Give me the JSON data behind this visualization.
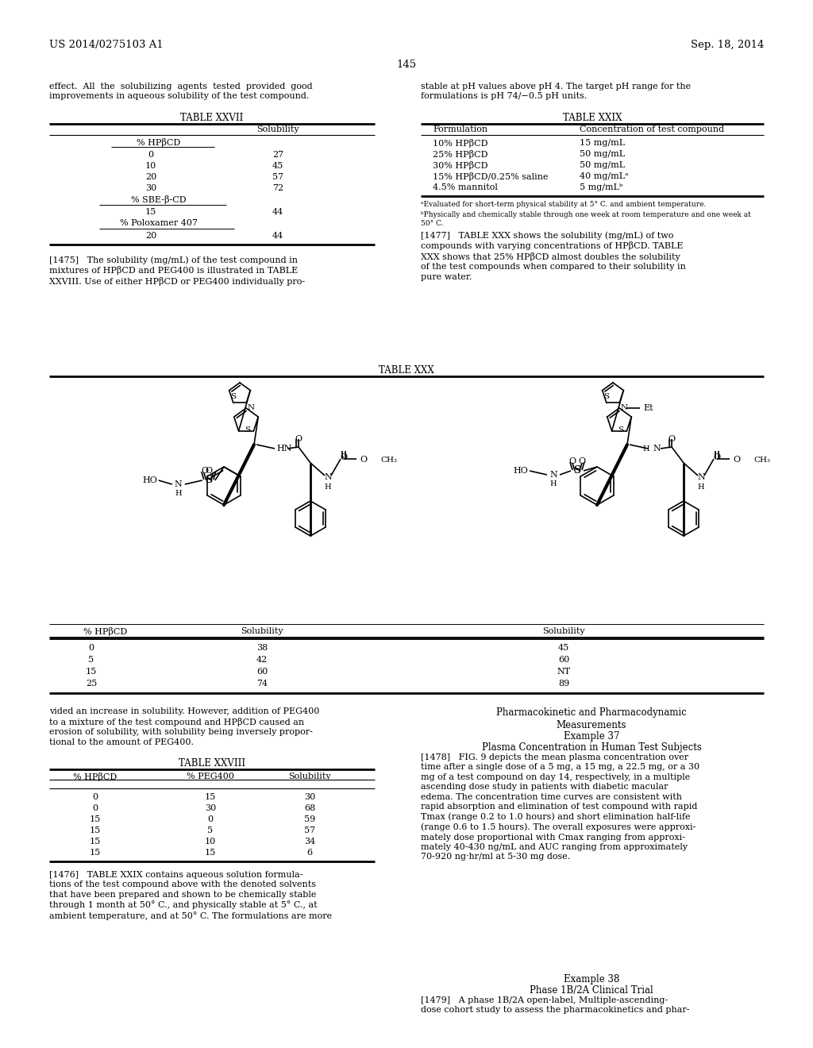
{
  "page_header_left": "US 2014/0275103 A1",
  "page_header_right": "Sep. 18, 2014",
  "page_number": "145",
  "bg_color": "#ffffff",
  "top_left_text": "effect.  All  the  solubilizing  agents  tested  provided  good\nimprovements in aqueous solubility of the test compound.",
  "top_right_text": "stable at pH values above pH 4. The target pH range for the\nformulations is pH 74/−0.5 pH units.",
  "table27_title": "TABLE XXVII",
  "table27_col2": "Solubility",
  "table27_row_header1": "% HPβCD",
  "table27_data": [
    [
      "0",
      "27"
    ],
    [
      "10",
      "45"
    ],
    [
      "20",
      "57"
    ],
    [
      "30",
      "72"
    ]
  ],
  "table27_row_header2": "% SBE-β-CD",
  "table27_data2": [
    [
      "15",
      "44"
    ]
  ],
  "table27_row_header3": "% Poloxamer 407",
  "table27_data3": [
    [
      "20",
      "44"
    ]
  ],
  "table29_title": "TABLE XXIX",
  "table29_col1": "Formulation",
  "table29_col2": "Concentration of test compound",
  "table29_data": [
    [
      "10% HPβCD",
      "15 mg/mL"
    ],
    [
      "25% HPβCD",
      "50 mg/mL"
    ],
    [
      "30% HPβCD",
      "50 mg/mL"
    ],
    [
      "15% HPβCD/0.25% saline",
      "40 mg/mLᵃ"
    ],
    [
      "4.5% mannitol",
      "5 mg/mLᵇ"
    ]
  ],
  "table29_footnote_a": "ᵃEvaluated for short-term physical stability at 5° C. and ambient temperature.",
  "table29_footnote_b": "ᵇPhysically and chemically stable through one week at room temperature and one week at\n50° C.",
  "para1477_text": "[1477]   TABLE XXX shows the solubility (mg/mL) of two\ncompounds with varying concentrations of HPβCD. TABLE\nXXX shows that 25% HPβCD almost doubles the solubility\nof the test compounds when compared to their solubility in\npure water.",
  "table30_title": "TABLE XXX",
  "table30_col1": "% HPβCD",
  "table30_col2": "Solubility",
  "table30_col3": "Solubility",
  "table30_data": [
    [
      "0",
      "38",
      "45"
    ],
    [
      "5",
      "42",
      "60"
    ],
    [
      "15",
      "60",
      "NT"
    ],
    [
      "25",
      "74",
      "89"
    ]
  ],
  "para1475_text": "[1475]   The solubility (mg/mL) of the test compound in\nmixtures of HPβCD and PEG400 is illustrated in TABLE\nXXVIII. Use of either HPβCD or PEG400 individually pro-",
  "para_bottom_left": "vided an increase in solubility. However, addition of PEG400\nto a mixture of the test compound and HPβCD caused an\nerosion of solubility, with solubility being inversely propor-\ntional to the amount of PEG400.",
  "table28_title": "TABLE XXVIII",
  "table28_col1": "% HPβCD",
  "table28_col2": "% PEG400",
  "table28_col3": "Solubility",
  "table28_data": [
    [
      "0",
      "15",
      "30"
    ],
    [
      "0",
      "30",
      "68"
    ],
    [
      "15",
      "0",
      "59"
    ],
    [
      "15",
      "5",
      "57"
    ],
    [
      "15",
      "10",
      "34"
    ],
    [
      "15",
      "15",
      "6"
    ]
  ],
  "pk_header": "Pharmacokinetic and Pharmacodynamic\nMeasurements",
  "example37_header": "Example 37",
  "plasma_header": "Plasma Concentration in Human Test Subjects",
  "para1478_text": "[1478]   FIG. 9 depicts the mean plasma concentration over\ntime after a single dose of a 5 mg, a 15 mg, a 22.5 mg, or a 30\nmg of a test compound on day 14, respectively, in a multiple\nascending dose study in patients with diabetic macular\nedema. The concentration time curves are consistent with\nrapid absorption and elimination of test compound with rapid\nTmax (range 0.2 to 1.0 hours) and short elimination half-life\n(range 0.6 to 1.5 hours). The overall exposures were approxi-\nmately dose proportional with Cmax ranging from approxi-\nmately 40-430 ng/mL and AUC ranging from approximately\n70-920 ng·hr/ml at 5-30 mg dose.",
  "para1476_text": "[1476]   TABLE XXIX contains aqueous solution formula-\ntions of the test compound above with the denoted solvents\nthat have been prepared and shown to be chemically stable\nthrough 1 month at 50° C., and physically stable at 5° C., at\nambient temperature, and at 50° C. The formulations are more",
  "example38_header": "Example 38",
  "phase_header": "Phase 1B/2A Clinical Trial",
  "para1479_text": "[1479]   A phase 1B/2A open-label, Multiple-ascending-\ndose cohort study to assess the pharmacokinetics and phar-"
}
